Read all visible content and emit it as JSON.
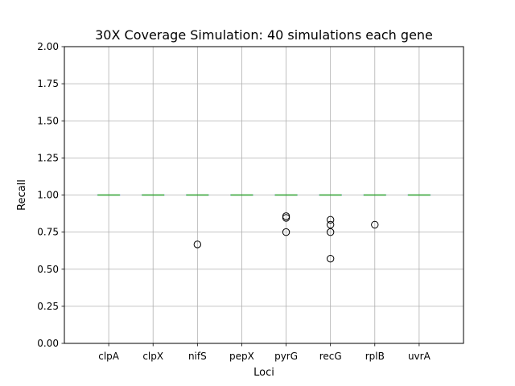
{
  "chart_data": {
    "type": "box",
    "title": "30X Coverage Simulation: 40 simulations each gene",
    "xlabel": "Loci",
    "ylabel": "Recall",
    "categories": [
      "clpA",
      "clpX",
      "nifS",
      "pepX",
      "pyrG",
      "recG",
      "rplB",
      "uvrA"
    ],
    "ylim": [
      0.0,
      2.0
    ],
    "yticks": [
      0.0,
      0.25,
      0.5,
      0.75,
      1.0,
      1.25,
      1.5,
      1.75,
      2.0
    ],
    "ytick_labels": [
      "0.00",
      "0.25",
      "0.50",
      "0.75",
      "1.00",
      "1.25",
      "1.50",
      "1.75",
      "2.00"
    ],
    "grid": true,
    "boxes": [
      {
        "category": "clpA",
        "median": 1.0,
        "q1": 1.0,
        "q3": 1.0,
        "whisker_low": 1.0,
        "whisker_high": 1.0,
        "fliers": []
      },
      {
        "category": "clpX",
        "median": 1.0,
        "q1": 1.0,
        "q3": 1.0,
        "whisker_low": 1.0,
        "whisker_high": 1.0,
        "fliers": []
      },
      {
        "category": "nifS",
        "median": 1.0,
        "q1": 1.0,
        "q3": 1.0,
        "whisker_low": 1.0,
        "whisker_high": 1.0,
        "fliers": [
          0.667
        ]
      },
      {
        "category": "pepX",
        "median": 1.0,
        "q1": 1.0,
        "q3": 1.0,
        "whisker_low": 1.0,
        "whisker_high": 1.0,
        "fliers": []
      },
      {
        "category": "pyrG",
        "median": 1.0,
        "q1": 1.0,
        "q3": 1.0,
        "whisker_low": 1.0,
        "whisker_high": 1.0,
        "fliers": [
          0.857,
          0.846,
          0.75
        ]
      },
      {
        "category": "recG",
        "median": 1.0,
        "q1": 1.0,
        "q3": 1.0,
        "whisker_low": 1.0,
        "whisker_high": 1.0,
        "fliers": [
          0.833,
          0.8,
          0.75,
          0.571
        ]
      },
      {
        "category": "rplB",
        "median": 1.0,
        "q1": 1.0,
        "q3": 1.0,
        "whisker_low": 1.0,
        "whisker_high": 1.0,
        "fliers": [
          0.8
        ]
      },
      {
        "category": "uvrA",
        "median": 1.0,
        "q1": 1.0,
        "q3": 1.0,
        "whisker_low": 1.0,
        "whisker_high": 1.0,
        "fliers": []
      }
    ],
    "colors": {
      "box": "#1f77b4",
      "median": "#2ca02c",
      "grid": "#b0b0b0",
      "flier": "#000000",
      "axes": "#000000"
    }
  }
}
